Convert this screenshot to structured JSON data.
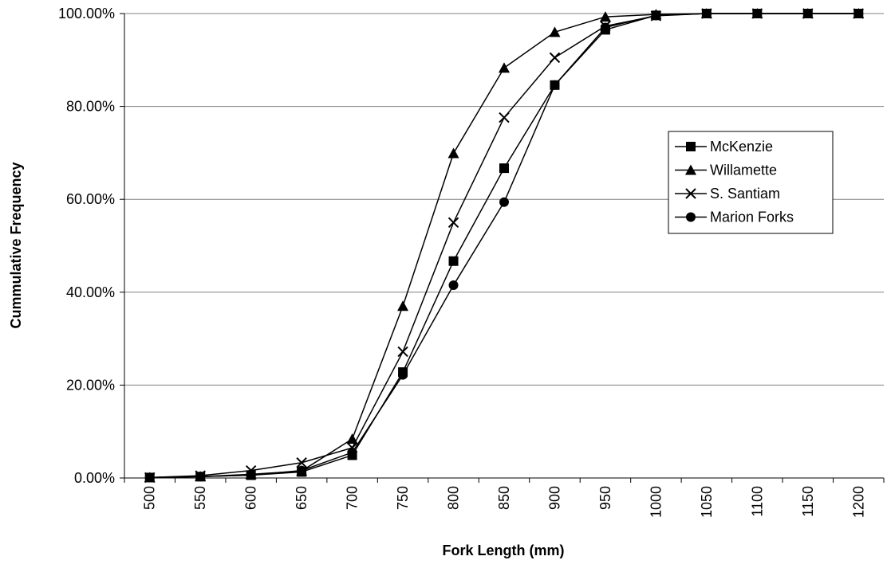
{
  "chart_data": {
    "type": "line",
    "x_label": "Fork Length (mm)",
    "y_label": "Cummulative Frequency",
    "categories": [
      500,
      550,
      600,
      650,
      700,
      750,
      800,
      850,
      900,
      950,
      1000,
      1050,
      1100,
      1150,
      1200
    ],
    "ylim": [
      0,
      100
    ],
    "yticks": [
      {
        "value": 0,
        "label": "0.00%"
      },
      {
        "value": 20,
        "label": "20.00%"
      },
      {
        "value": 40,
        "label": "40.00%"
      },
      {
        "value": 60,
        "label": "60.00%"
      },
      {
        "value": 80,
        "label": "80.00%"
      },
      {
        "value": 100,
        "label": "100.00%"
      }
    ],
    "grid": true,
    "legend": "right",
    "series": [
      {
        "name": "McKenzie",
        "color": "#000000",
        "marker": "square",
        "values": [
          0.1,
          0.3,
          0.6,
          1.3,
          4.9,
          22.8,
          46.7,
          66.7,
          84.6,
          96.5,
          99.6,
          100,
          100,
          100,
          100
        ]
      },
      {
        "name": "Willamette",
        "color": "#000000",
        "marker": "triangle",
        "values": [
          0.1,
          0.3,
          0.8,
          1.5,
          8.4,
          37.0,
          69.9,
          88.3,
          96.0,
          99.3,
          99.8,
          100,
          100,
          100,
          100
        ]
      },
      {
        "name": "S. Santiam",
        "color": "#000000",
        "marker": "x",
        "values": [
          0.1,
          0.5,
          1.6,
          3.3,
          6.5,
          27.2,
          55.0,
          77.6,
          90.5,
          97.3,
          99.5,
          100,
          100,
          100,
          100
        ]
      },
      {
        "name": "Marion Forks",
        "color": "#000000",
        "marker": "circle",
        "values": [
          0.1,
          0.3,
          0.6,
          1.6,
          5.5,
          22.2,
          41.5,
          59.4,
          84.6,
          97.0,
          99.6,
          100,
          100,
          100,
          100
        ]
      }
    ]
  }
}
